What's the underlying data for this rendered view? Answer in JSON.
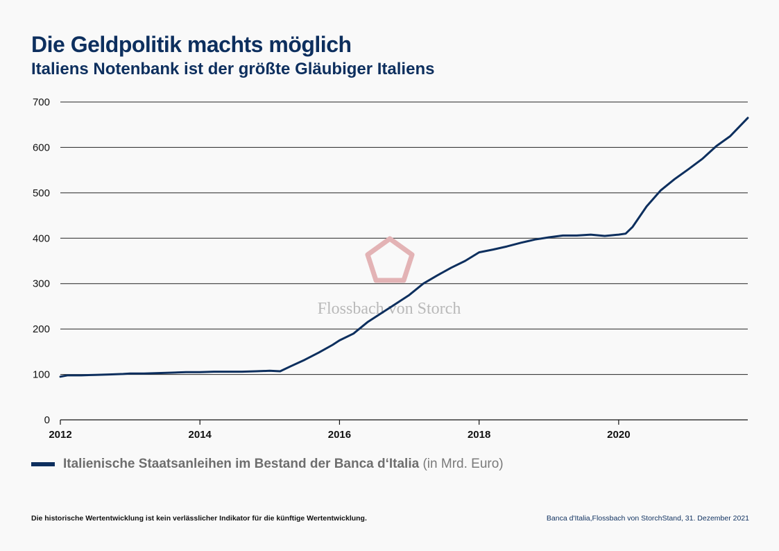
{
  "header": {
    "title": "Die Geldpolitik machts möglich",
    "subtitle": "Italiens Notenbank ist der größte Gläubiger Italiens"
  },
  "watermark": {
    "text": "Flossbach von Storch",
    "icon": "pentagon-logo-icon"
  },
  "legend": {
    "label": "Italienische Staatsanleihen im Bestand der Banca d‘Italia",
    "unit": "(in Mrd. Euro)"
  },
  "footer": {
    "disclaimer": "Die historische Wertentwicklung ist kein verlässlicher Indikator für die künftige Wertentwicklung.",
    "source": "Banca d'Italia,Flossbach von StorchStand, 31. Dezember 2021"
  },
  "colors": {
    "series": "#0d2f5e",
    "gridline": "#222222",
    "watermark_logo": "#e3b3b5"
  },
  "chart_data": {
    "type": "line",
    "title": "Die Geldpolitik machts möglich",
    "subtitle": "Italiens Notenbank ist der größte Gläubiger Italiens",
    "xlabel": "",
    "ylabel": "",
    "xlim": [
      2012,
      2021.85
    ],
    "ylim": [
      0,
      700
    ],
    "x_ticks": [
      "2012",
      "2014",
      "2016",
      "2018",
      "2020"
    ],
    "y_ticks": [
      "0",
      "100",
      "200",
      "300",
      "400",
      "500",
      "600",
      "700"
    ],
    "grid": "horizontal",
    "legend_position": "bottom-left",
    "series": [
      {
        "name": "Italienische Staatsanleihen im Bestand der Banca d‘Italia",
        "x": [
          2012.0,
          2012.1,
          2012.3,
          2012.5,
          2012.7,
          2012.9,
          2013.0,
          2013.2,
          2013.4,
          2013.6,
          2013.8,
          2014.0,
          2014.2,
          2014.4,
          2014.6,
          2014.8,
          2015.0,
          2015.15,
          2015.3,
          2015.5,
          2015.7,
          2015.9,
          2016.0,
          2016.2,
          2016.4,
          2016.6,
          2016.8,
          2017.0,
          2017.2,
          2017.4,
          2017.6,
          2017.8,
          2018.0,
          2018.2,
          2018.4,
          2018.6,
          2018.8,
          2019.0,
          2019.2,
          2019.4,
          2019.6,
          2019.8,
          2020.0,
          2020.1,
          2020.2,
          2020.4,
          2020.6,
          2020.8,
          2021.0,
          2021.2,
          2021.4,
          2021.6,
          2021.85
        ],
        "y": [
          95,
          98,
          98,
          99,
          100,
          101,
          102,
          102,
          103,
          104,
          105,
          105,
          106,
          106,
          106,
          107,
          108,
          107,
          118,
          132,
          148,
          165,
          175,
          190,
          215,
          235,
          255,
          275,
          300,
          318,
          335,
          350,
          369,
          375,
          382,
          390,
          397,
          402,
          406,
          406,
          408,
          405,
          408,
          410,
          425,
          470,
          505,
          530,
          552,
          575,
          603,
          625,
          665
        ]
      }
    ]
  }
}
